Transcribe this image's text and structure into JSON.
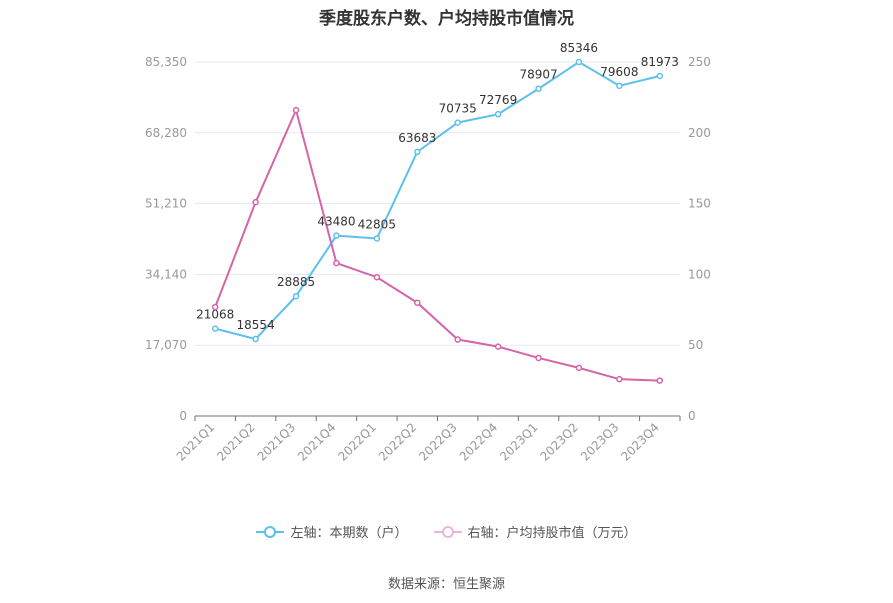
{
  "chart_data": {
    "type": "line",
    "title": "季度股东户数、户均持股市值情况",
    "categories": [
      "2021Q1",
      "2021Q2",
      "2021Q3",
      "2021Q4",
      "2022Q1",
      "2022Q2",
      "2022Q3",
      "2022Q4",
      "2023Q1",
      "2023Q2",
      "2023Q3",
      "2023Q4"
    ],
    "left_axis": {
      "ticks": [
        "0",
        "17,070",
        "34,140",
        "51,210",
        "68,280",
        "85,350"
      ],
      "ylim": [
        0,
        85350
      ]
    },
    "right_axis": {
      "ticks": [
        "0",
        "50",
        "100",
        "150",
        "200",
        "250"
      ],
      "ylim": [
        0,
        250
      ]
    },
    "series": [
      {
        "name": "左轴：本期数（户）",
        "axis": "left",
        "color": "#5bc0eb",
        "values": [
          21068,
          18554,
          28885,
          43480,
          42805,
          63683,
          70735,
          72769,
          78907,
          85346,
          79608,
          81973
        ],
        "labels": [
          "21068",
          "18554",
          "28885",
          "43480",
          "42805",
          "63683",
          "70735",
          "72769",
          "78907",
          "85346",
          "79608",
          "81973"
        ]
      },
      {
        "name": "右轴：户均持股市值（万元）",
        "axis": "right",
        "color": "#d565a8",
        "values": [
          77,
          151,
          216,
          108,
          98,
          80,
          54,
          49,
          41,
          34,
          26,
          25
        ]
      }
    ],
    "legend_position": "bottom",
    "grid": true
  },
  "source": "数据来源：恒生聚源"
}
